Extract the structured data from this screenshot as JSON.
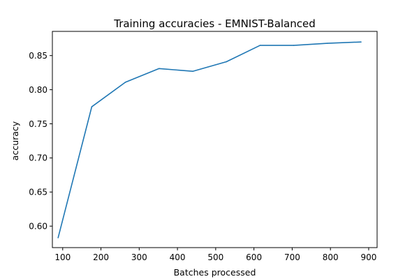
{
  "chart_data": {
    "type": "line",
    "title": "Training accuracies - EMNIST-Balanced",
    "xlabel": "Batches processed",
    "ylabel": "accuracy",
    "xlim": [
      73,
      922
    ],
    "ylim": [
      0.5685,
      0.8855
    ],
    "xticks": [
      100,
      200,
      300,
      400,
      500,
      600,
      700,
      800,
      900
    ],
    "yticks": [
      0.6,
      0.65,
      0.7,
      0.75,
      0.8,
      0.85
    ],
    "xtick_labels": [
      "100",
      "200",
      "300",
      "400",
      "500",
      "600",
      "700",
      "800",
      "900"
    ],
    "ytick_labels": [
      "0.60",
      "0.65",
      "0.70",
      "0.75",
      "0.80",
      "0.85"
    ],
    "grid": false,
    "series": [
      {
        "color": "#1f77b4",
        "x": [
          88,
          176,
          264,
          352,
          440,
          528,
          616,
          704,
          792,
          880
        ],
        "y": [
          0.583,
          0.775,
          0.811,
          0.831,
          0.827,
          0.841,
          0.865,
          0.865,
          0.868,
          0.87
        ]
      }
    ]
  }
}
